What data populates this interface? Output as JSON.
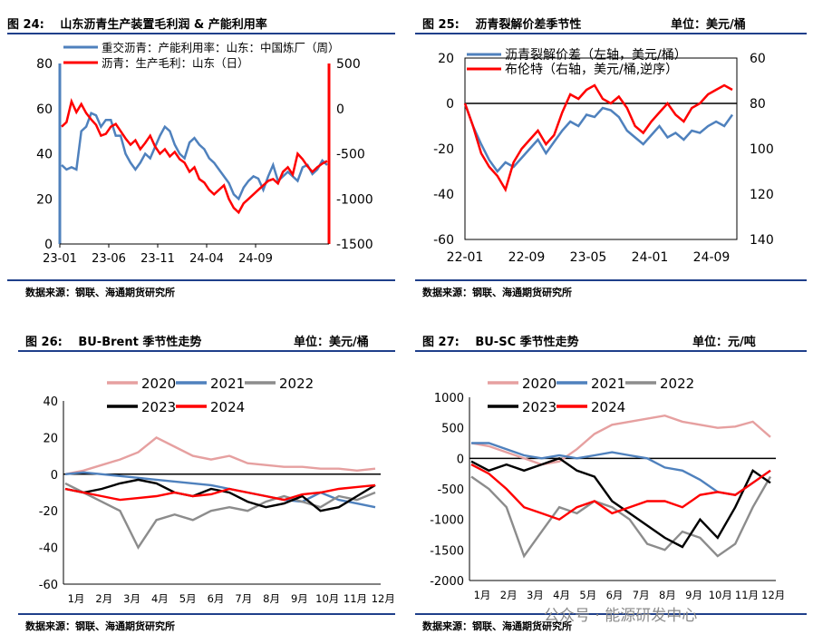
{
  "panels": [
    {
      "title": "图 24:　 山东沥青生产装置毛利润 & 产能利用率",
      "unit": "",
      "source": "数据来源：钢联、海通期货研究所"
    },
    {
      "title": "图 25:　 沥青裂解价差季节性",
      "unit": "单位：美元/桶",
      "source": "数据来源：钢联、海通期货研究所"
    },
    {
      "title": "图 26:　 BU-Brent 季节性走势",
      "unit": "单位：美元/桶",
      "source": "数据来源：钢联、海通期货研究所"
    },
    {
      "title": "图 27:　 BU-SC 季节性走势",
      "unit": "单位：元/吨",
      "source": "数据来源：钢联、海通期货研究所"
    }
  ],
  "watermark": "公众号 · 能源研发中心",
  "colors": {
    "blue": "#4f81bd",
    "red": "#ff0000",
    "pink": "#e6a0a0",
    "gray": "#8c8c8c",
    "black": "#000000",
    "rule": "#1f3f8a"
  },
  "chart_data": [
    {
      "type": "line",
      "x_ticks": [
        "23-01",
        "23-06",
        "23-11",
        "24-04",
        "24-09"
      ],
      "y_left": {
        "ylim": [
          0,
          80
        ],
        "ticks": [
          0,
          20,
          40,
          60,
          80
        ]
      },
      "y_right": {
        "ylim": [
          -1500,
          500
        ],
        "ticks": [
          -1500,
          -1000,
          -500,
          0,
          500
        ]
      },
      "series": [
        {
          "name": "重交沥青：产能利用率：山东：中国炼厂（周）",
          "axis": "left",
          "color": "#4f81bd",
          "values": [
            35,
            33,
            34,
            33,
            50,
            52,
            58,
            57,
            52,
            55,
            55,
            48,
            48,
            40,
            36,
            33,
            36,
            40,
            38,
            43,
            48,
            52,
            50,
            44,
            40,
            38,
            45,
            47,
            44,
            42,
            38,
            36,
            33,
            30,
            27,
            22,
            20,
            25,
            28,
            30,
            29,
            24,
            30,
            35,
            28,
            30,
            32,
            30,
            28,
            34,
            35,
            31,
            33,
            37,
            35
          ]
        },
        {
          "name": "沥青：生产毛利：山东（日）",
          "axis": "right",
          "color": "#ff0000",
          "values": [
            -200,
            -150,
            80,
            -40,
            50,
            -50,
            -120,
            -180,
            -300,
            -280,
            -200,
            -170,
            -250,
            -330,
            -400,
            -350,
            -450,
            -380,
            -300,
            -420,
            -500,
            -450,
            -530,
            -480,
            -560,
            -600,
            -700,
            -650,
            -780,
            -820,
            -900,
            -950,
            -900,
            -850,
            -1000,
            -1100,
            -1150,
            -1050,
            -1000,
            -950,
            -900,
            -850,
            -800,
            -780,
            -830,
            -700,
            -650,
            -730,
            -500,
            -560,
            -640,
            -700,
            -650,
            -610,
            -580
          ]
        }
      ]
    },
    {
      "type": "line",
      "x_ticks": [
        "22-01",
        "22-09",
        "23-05",
        "24-01",
        "24-09"
      ],
      "y_left": {
        "ylim": [
          -60,
          20
        ],
        "ticks": [
          -60,
          -40,
          -20,
          0,
          20
        ]
      },
      "y_right": {
        "ylim": [
          60,
          140
        ],
        "ticks": [
          60,
          80,
          100,
          120,
          140
        ],
        "reversed": true
      },
      "series": [
        {
          "name": "沥青裂解价差（左轴，美元/桶）",
          "axis": "left",
          "color": "#4f81bd",
          "values": [
            0,
            -10,
            -18,
            -25,
            -30,
            -26,
            -28,
            -24,
            -20,
            -16,
            -22,
            -17,
            -12,
            -8,
            -10,
            -5,
            -6,
            -2,
            -3,
            -6,
            -12,
            -15,
            -18,
            -14,
            -10,
            -15,
            -13,
            -16,
            -12,
            -13,
            -10,
            -8,
            -10,
            -5
          ]
        },
        {
          "name": "布伦特（右轴，美元/桶,逆序）",
          "axis": "right",
          "color": "#ff0000",
          "values": [
            80,
            90,
            102,
            108,
            112,
            118,
            106,
            100,
            96,
            92,
            98,
            94,
            84,
            76,
            78,
            74,
            72,
            78,
            80,
            77,
            82,
            90,
            93,
            88,
            84,
            80,
            85,
            88,
            82,
            80,
            76,
            74,
            72,
            74
          ]
        }
      ]
    },
    {
      "type": "line",
      "x_ticks": [
        "1月",
        "2月",
        "3月",
        "4月",
        "5月",
        "6月",
        "7月",
        "8月",
        "9月",
        "10月",
        "11月",
        "12月"
      ],
      "ylim": [
        -60,
        40
      ],
      "y_ticks": [
        -60,
        -40,
        -20,
        0,
        20,
        40
      ],
      "series": [
        {
          "name": "2020",
          "color": "#e6a0a0",
          "values": [
            0,
            2,
            5,
            8,
            12,
            20,
            15,
            10,
            8,
            10,
            6,
            5,
            4,
            4,
            3,
            3,
            2,
            3
          ]
        },
        {
          "name": "2021",
          "color": "#4f81bd",
          "values": [
            0,
            1,
            0,
            -1,
            -2,
            -3,
            -4,
            -5,
            -6,
            -8,
            -10,
            -12,
            -14,
            -15,
            -10,
            -14,
            -16,
            -18
          ]
        },
        {
          "name": "2022",
          "color": "#8c8c8c",
          "values": [
            -5,
            -10,
            -15,
            -20,
            -40,
            -25,
            -22,
            -25,
            -20,
            -18,
            -20,
            -15,
            -12,
            -15,
            -18,
            -12,
            -14,
            -10
          ]
        },
        {
          "name": "2023",
          "color": "#000000",
          "values": [
            -8,
            -10,
            -8,
            -5,
            -3,
            -5,
            -10,
            -12,
            -8,
            -10,
            -15,
            -18,
            -16,
            -12,
            -20,
            -18,
            -12,
            -6
          ]
        },
        {
          "name": "2024",
          "color": "#ff0000",
          "values": [
            -8,
            -10,
            -12,
            -14,
            -13,
            -12,
            -10,
            -12,
            -11,
            -8,
            -10,
            -12,
            -14,
            -11,
            -10,
            -8,
            -7,
            -6
          ]
        }
      ]
    },
    {
      "type": "line",
      "x_ticks": [
        "1月",
        "2月",
        "3月",
        "4月",
        "5月",
        "6月",
        "7月",
        "8月",
        "9月",
        "10月",
        "11月",
        "12月"
      ],
      "ylim": [
        -2000,
        1000
      ],
      "y_ticks": [
        -2000,
        -1500,
        -1000,
        -500,
        0,
        500,
        1000
      ],
      "series": [
        {
          "name": "2020",
          "color": "#e6a0a0",
          "values": [
            250,
            200,
            100,
            0,
            -100,
            -50,
            150,
            400,
            550,
            600,
            650,
            700,
            600,
            550,
            500,
            520,
            600,
            350
          ]
        },
        {
          "name": "2021",
          "color": "#4f81bd",
          "values": [
            250,
            250,
            150,
            50,
            0,
            50,
            0,
            50,
            100,
            50,
            0,
            -150,
            -200,
            -350,
            -550,
            -600,
            -400,
            -200
          ]
        },
        {
          "name": "2022",
          "color": "#8c8c8c",
          "values": [
            -300,
            -500,
            -800,
            -1600,
            -1200,
            -800,
            -900,
            -700,
            -800,
            -1000,
            -1400,
            -1500,
            -1200,
            -1300,
            -1600,
            -1400,
            -800,
            -300
          ]
        },
        {
          "name": "2023",
          "color": "#000000",
          "values": [
            -50,
            -200,
            -100,
            -200,
            -100,
            0,
            -200,
            -300,
            -700,
            -900,
            -1100,
            -1300,
            -1450,
            -1000,
            -1300,
            -800,
            -200,
            -400
          ]
        },
        {
          "name": "2024",
          "color": "#ff0000",
          "values": [
            -100,
            -250,
            -500,
            -800,
            -900,
            -1000,
            -800,
            -700,
            -900,
            -800,
            -700,
            -700,
            -800,
            -600,
            -550,
            -600,
            -400,
            -200
          ]
        }
      ]
    }
  ]
}
